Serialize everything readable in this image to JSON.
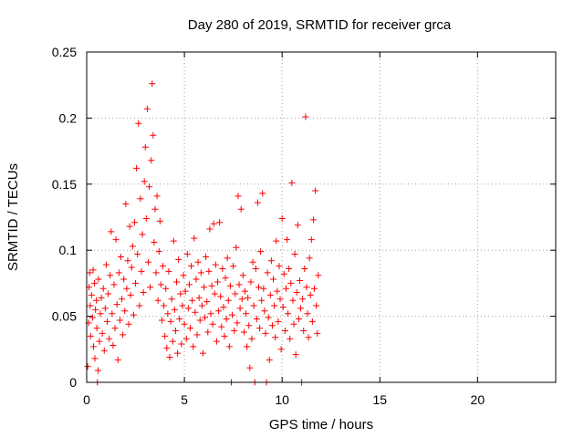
{
  "chart_data": {
    "type": "scatter",
    "title": "Day 280 of 2019, SRMTID for receiver grca",
    "xlabel": "GPS time / hours",
    "ylabel": "SRMTID / TECUs",
    "xlim": [
      0,
      24
    ],
    "ylim": [
      0,
      0.25
    ],
    "xticks": [
      0,
      5,
      10,
      15,
      20
    ],
    "yticks": [
      0,
      0.05,
      0.1,
      0.15,
      0.2,
      0.25
    ],
    "xtick_labels": [
      "0",
      "5",
      "10",
      "15",
      "20"
    ],
    "ytick_labels": [
      "0",
      "0.05",
      "0.1",
      "0.15",
      "0.2",
      "0.25"
    ],
    "grid": true,
    "marker": "+",
    "color": "#ff0000",
    "series": [
      {
        "name": "SRMTID",
        "points": [
          [
            0.05,
            0.012
          ],
          [
            0.1,
            0.045
          ],
          [
            0.12,
            0.072
          ],
          [
            0.15,
            0.083
          ],
          [
            0.18,
            0.058
          ],
          [
            0.2,
            0.035
          ],
          [
            0.25,
            0.066
          ],
          [
            0.3,
            0.049
          ],
          [
            0.33,
            0.085
          ],
          [
            0.35,
            0.027
          ],
          [
            0.4,
            0.075
          ],
          [
            0.42,
            0.018
          ],
          [
            0.45,
            0.055
          ],
          [
            0.5,
            0.062
          ],
          [
            0.52,
            0.041
          ],
          [
            0.55,
            0.0
          ],
          [
            0.58,
            0.009
          ],
          [
            0.6,
            0.078
          ],
          [
            0.65,
            0.031
          ],
          [
            0.7,
            0.052
          ],
          [
            0.75,
            0.064
          ],
          [
            0.8,
            0.037
          ],
          [
            0.85,
            0.071
          ],
          [
            0.9,
            0.024
          ],
          [
            0.95,
            0.056
          ],
          [
            1.0,
            0.089
          ],
          [
            1.05,
            0.046
          ],
          [
            1.1,
            0.067
          ],
          [
            1.15,
            0.033
          ],
          [
            1.2,
            0.081
          ],
          [
            1.25,
            0.114
          ],
          [
            1.3,
            0.052
          ],
          [
            1.35,
            0.028
          ],
          [
            1.4,
            0.074
          ],
          [
            1.45,
            0.041
          ],
          [
            1.5,
            0.108
          ],
          [
            1.55,
            0.059
          ],
          [
            1.6,
            0.017
          ],
          [
            1.65,
            0.083
          ],
          [
            1.7,
            0.047
          ],
          [
            1.75,
            0.095
          ],
          [
            1.8,
            0.063
          ],
          [
            1.85,
            0.036
          ],
          [
            1.9,
            0.078
          ],
          [
            1.95,
            0.054
          ],
          [
            2.0,
            0.135
          ],
          [
            2.05,
            0.071
          ],
          [
            2.1,
            0.092
          ],
          [
            2.15,
            0.044
          ],
          [
            2.2,
            0.118
          ],
          [
            2.25,
            0.066
          ],
          [
            2.3,
            0.087
          ],
          [
            2.35,
            0.103
          ],
          [
            2.4,
            0.051
          ],
          [
            2.45,
            0.121
          ],
          [
            2.5,
            0.075
          ],
          [
            2.55,
            0.162
          ],
          [
            2.6,
            0.097
          ],
          [
            2.65,
            0.196
          ],
          [
            2.7,
            0.058
          ],
          [
            2.75,
            0.139
          ],
          [
            2.8,
            0.084
          ],
          [
            2.85,
            0.112
          ],
          [
            2.9,
            0.068
          ],
          [
            2.95,
            0.152
          ],
          [
            3.0,
            0.178
          ],
          [
            3.05,
            0.124
          ],
          [
            3.1,
            0.207
          ],
          [
            3.15,
            0.091
          ],
          [
            3.2,
            0.148
          ],
          [
            3.25,
            0.072
          ],
          [
            3.3,
            0.168
          ],
          [
            3.35,
            0.226
          ],
          [
            3.4,
            0.187
          ],
          [
            3.45,
            0.106
          ],
          [
            3.5,
            0.131
          ],
          [
            3.55,
            0.083
          ],
          [
            3.6,
            0.141
          ],
          [
            3.65,
            0.062
          ],
          [
            3.7,
            0.099
          ],
          [
            3.75,
            0.122
          ],
          [
            3.8,
            0.074
          ],
          [
            3.85,
            0.047
          ],
          [
            3.9,
            0.088
          ],
          [
            3.95,
            0.058
          ],
          [
            4.0,
            0.035
          ],
          [
            4.05,
            0.071
          ],
          [
            4.1,
            0.026
          ],
          [
            4.15,
            0.052
          ],
          [
            4.2,
            0.084
          ],
          [
            4.25,
            0.019
          ],
          [
            4.3,
            0.046
          ],
          [
            4.35,
            0.063
          ],
          [
            4.4,
            0.031
          ],
          [
            4.45,
            0.107
          ],
          [
            4.5,
            0.055
          ],
          [
            4.55,
            0.039
          ],
          [
            4.6,
            0.076
          ],
          [
            4.65,
            0.022
          ],
          [
            4.7,
            0.093
          ],
          [
            4.75,
            0.048
          ],
          [
            4.8,
            0.067
          ],
          [
            4.85,
            0.029
          ],
          [
            4.9,
            0.058
          ],
          [
            4.95,
            0.081
          ],
          [
            5.0,
            0.044
          ],
          [
            5.05,
            0.069
          ],
          [
            5.1,
            0.033
          ],
          [
            5.15,
            0.097
          ],
          [
            5.2,
            0.056
          ],
          [
            5.25,
            0.074
          ],
          [
            5.3,
            0.041
          ],
          [
            5.35,
            0.088
          ],
          [
            5.4,
            0.062
          ],
          [
            5.45,
            0.027
          ],
          [
            5.5,
            0.109
          ],
          [
            5.55,
            0.053
          ],
          [
            5.6,
            0.078
          ],
          [
            5.65,
            0.036
          ],
          [
            5.7,
            0.091
          ],
          [
            5.75,
            0.064
          ],
          [
            5.8,
            0.047
          ],
          [
            5.85,
            0.083
          ],
          [
            5.9,
            0.058
          ],
          [
            5.95,
            0.022
          ],
          [
            6.0,
            0.072
          ],
          [
            6.05,
            0.049
          ],
          [
            6.1,
            0.095
          ],
          [
            6.15,
            0.061
          ],
          [
            6.2,
            0.038
          ],
          [
            6.25,
            0.084
          ],
          [
            6.3,
            0.116
          ],
          [
            6.35,
            0.052
          ],
          [
            6.4,
            0.073
          ],
          [
            6.45,
            0.044
          ],
          [
            6.5,
            0.12
          ],
          [
            6.55,
            0.067
          ],
          [
            6.6,
            0.089
          ],
          [
            6.65,
            0.031
          ],
          [
            6.7,
            0.076
          ],
          [
            6.75,
            0.054
          ],
          [
            6.8,
            0.121
          ],
          [
            6.85,
            0.065
          ],
          [
            6.9,
            0.042
          ],
          [
            6.95,
            0.086
          ],
          [
            7.0,
            0.057
          ],
          [
            7.05,
            0.035
          ],
          [
            7.1,
            0.079
          ],
          [
            7.15,
            0.048
          ],
          [
            7.2,
            0.094
          ],
          [
            7.25,
            0.062
          ],
          [
            7.3,
            0.027
          ],
          [
            7.35,
            0.073
          ],
          [
            7.4,
            0.0
          ],
          [
            7.45,
            0.051
          ],
          [
            7.5,
            0.088
          ],
          [
            7.55,
            0.039
          ],
          [
            7.6,
            0.067
          ],
          [
            7.65,
            0.102
          ],
          [
            7.7,
            0.045
          ],
          [
            7.75,
            0.141
          ],
          [
            7.8,
            0.074
          ],
          [
            7.85,
            0.056
          ],
          [
            7.9,
            0.131
          ],
          [
            7.95,
            0.063
          ],
          [
            8.0,
            0.081
          ],
          [
            8.05,
            0.038
          ],
          [
            8.1,
            0.069
          ],
          [
            8.15,
            0.052
          ],
          [
            8.2,
            0.027
          ],
          [
            8.25,
            0.064
          ],
          [
            8.3,
            0.043
          ],
          [
            8.35,
            0.011
          ],
          [
            8.4,
            0.076
          ],
          [
            8.45,
            0.033
          ],
          [
            8.5,
            0.091
          ],
          [
            8.55,
            0.058
          ],
          [
            8.6,
            0.0
          ],
          [
            8.65,
            0.086
          ],
          [
            8.7,
            0.048
          ],
          [
            8.75,
            0.136
          ],
          [
            8.8,
            0.072
          ],
          [
            8.85,
            0.041
          ],
          [
            8.9,
            0.099
          ],
          [
            8.95,
            0.062
          ],
          [
            9.0,
            0.143
          ],
          [
            9.05,
            0.071
          ],
          [
            9.1,
            0.054
          ],
          [
            9.15,
            0.037
          ],
          [
            9.2,
            0.0
          ],
          [
            9.25,
            0.083
          ],
          [
            9.3,
            0.049
          ],
          [
            9.35,
            0.017
          ],
          [
            9.4,
            0.066
          ],
          [
            9.45,
            0.092
          ],
          [
            9.5,
            0.043
          ],
          [
            9.55,
            0.078
          ],
          [
            9.6,
            0.058
          ],
          [
            9.65,
            0.034
          ],
          [
            9.7,
            0.107
          ],
          [
            9.75,
            0.069
          ],
          [
            9.8,
            0.046
          ],
          [
            9.85,
            0.088
          ],
          [
            9.9,
            0.063
          ],
          [
            9.95,
            0.025
          ],
          [
            10.0,
            0.124
          ],
          [
            10.05,
            0.057
          ],
          [
            10.1,
            0.082
          ],
          [
            10.15,
            0.039
          ],
          [
            10.2,
            0.071
          ],
          [
            10.25,
            0.108
          ],
          [
            10.3,
            0.052
          ],
          [
            10.35,
            0.086
          ],
          [
            10.4,
            0.033
          ],
          [
            10.45,
            0.075
          ],
          [
            10.5,
            0.151
          ],
          [
            10.55,
            0.062
          ],
          [
            10.6,
            0.044
          ],
          [
            10.65,
            0.097
          ],
          [
            10.7,
            0.021
          ],
          [
            10.75,
            0.068
          ],
          [
            10.8,
            0.119
          ],
          [
            10.85,
            0.048
          ],
          [
            10.9,
            0.077
          ],
          [
            10.95,
            0.056
          ],
          [
            11.0,
            0.0
          ],
          [
            11.05,
            0.063
          ],
          [
            11.1,
            0.039
          ],
          [
            11.15,
            0.086
          ],
          [
            11.2,
            0.201
          ],
          [
            11.25,
            0.072
          ],
          [
            11.3,
            0.052
          ],
          [
            11.35,
            0.034
          ],
          [
            11.4,
            0.094
          ],
          [
            11.45,
            0.066
          ],
          [
            11.5,
            0.108
          ],
          [
            11.55,
            0.046
          ],
          [
            11.6,
            0.123
          ],
          [
            11.65,
            0.071
          ],
          [
            11.7,
            0.145
          ],
          [
            11.75,
            0.058
          ],
          [
            11.8,
            0.037
          ],
          [
            11.85,
            0.081
          ]
        ]
      }
    ]
  }
}
